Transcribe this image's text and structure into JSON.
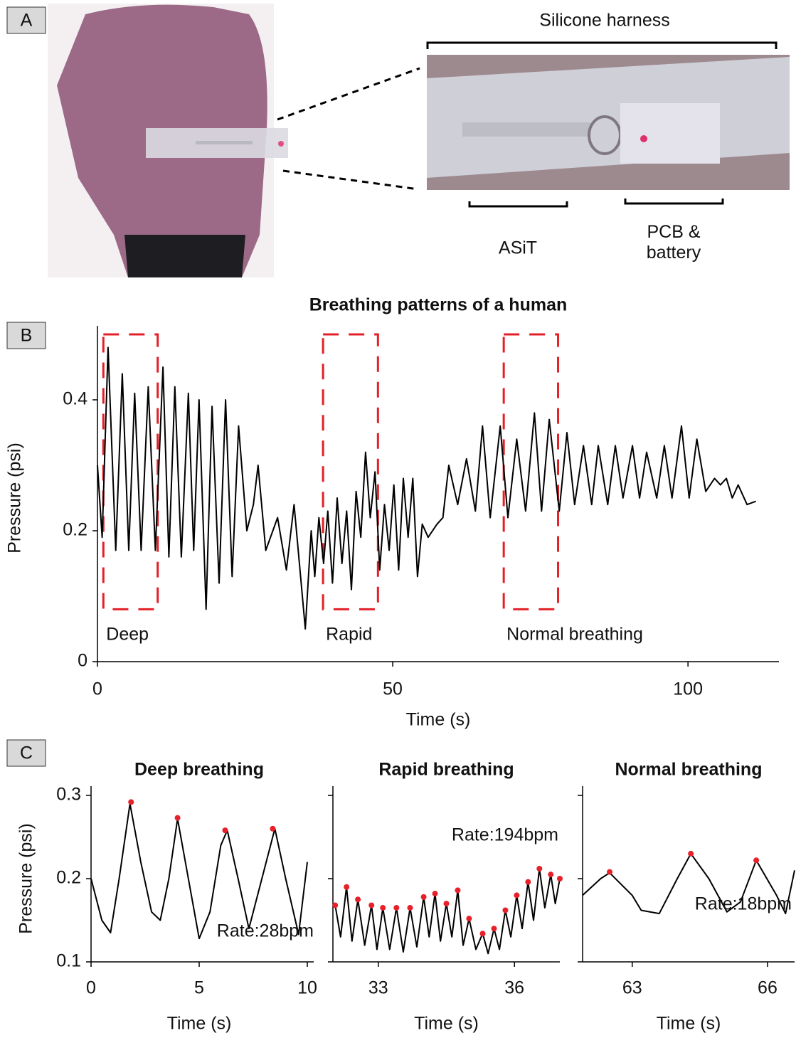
{
  "panel_labels": [
    "A",
    "B",
    "C"
  ],
  "photo_annotations": {
    "harness": "Silicone harness",
    "sensor": "ASiT",
    "pcb": "PCB & battery"
  },
  "chart_data": [
    {
      "type": "line",
      "title": "Breathing patterns of a human",
      "xlabel": "Time (s)",
      "ylabel": "Pressure (psi)",
      "xlim": [
        0,
        115.4
      ],
      "xticks": [
        0,
        50,
        100
      ],
      "ylim": [
        0,
        0.5
      ],
      "yticks": [
        0,
        0.2,
        0.4
      ],
      "color": "#000000",
      "x": [
        0,
        0.8,
        1.8,
        3.1,
        4.2,
        5.3,
        6.3,
        7.4,
        8.6,
        9.8,
        11.1,
        12.1,
        13.1,
        14.2,
        15.4,
        16.3,
        17.2,
        18.4,
        19.4,
        20.6,
        21.7,
        22.8,
        23.9,
        25.3,
        26.4,
        27.2,
        28.5,
        30.5,
        32,
        33.3,
        34.2,
        35.2,
        36.2,
        36.8,
        37.5,
        38.3,
        39,
        39.8,
        40.6,
        41.4,
        42.2,
        43,
        43.8,
        44.6,
        45.4,
        46.2,
        47,
        47.8,
        48.6,
        49.4,
        50.2,
        51,
        51.8,
        52.6,
        53.4,
        54.2,
        55,
        56,
        57.5,
        58.5,
        59.5,
        61,
        62.5,
        64,
        65.2,
        66.5,
        68.2,
        69.5,
        71,
        72.5,
        74,
        75.2,
        76.5,
        78.2,
        79.5,
        80.8,
        82.3,
        83.7,
        84.8,
        86.4,
        87.7,
        89,
        90.6,
        91.8,
        93,
        94.7,
        96,
        97.3,
        98.9,
        100.2,
        101.5,
        103,
        104.5,
        105.5,
        106.5,
        107.5,
        108.5,
        110,
        111.5
      ],
      "values": [
        0.3,
        0.19,
        0.48,
        0.17,
        0.44,
        0.17,
        0.41,
        0.17,
        0.42,
        0.17,
        0.45,
        0.16,
        0.42,
        0.16,
        0.41,
        0.17,
        0.4,
        0.08,
        0.39,
        0.12,
        0.4,
        0.13,
        0.36,
        0.2,
        0.24,
        0.3,
        0.17,
        0.22,
        0.14,
        0.24,
        0.15,
        0.05,
        0.2,
        0.13,
        0.22,
        0.15,
        0.23,
        0.12,
        0.25,
        0.15,
        0.23,
        0.11,
        0.26,
        0.19,
        0.32,
        0.22,
        0.29,
        0.14,
        0.24,
        0.17,
        0.27,
        0.14,
        0.28,
        0.19,
        0.28,
        0.13,
        0.21,
        0.19,
        0.21,
        0.22,
        0.3,
        0.24,
        0.31,
        0.23,
        0.36,
        0.22,
        0.36,
        0.22,
        0.34,
        0.23,
        0.38,
        0.23,
        0.37,
        0.23,
        0.35,
        0.24,
        0.33,
        0.24,
        0.33,
        0.24,
        0.33,
        0.25,
        0.33,
        0.25,
        0.32,
        0.25,
        0.33,
        0.25,
        0.36,
        0.25,
        0.34,
        0.26,
        0.28,
        0.27,
        0.28,
        0.25,
        0.27,
        0.24,
        0.245
      ],
      "box_color": "#e32028",
      "boxes": [
        {
          "label": "Deep",
          "x": [
            1,
            10.2
          ],
          "y": [
            0.08,
            0.5
          ]
        },
        {
          "label": "Rapid",
          "x": [
            38.2,
            47.5
          ],
          "y": [
            0.08,
            0.5
          ]
        },
        {
          "label": "Normal breathing",
          "x": [
            68.8,
            78
          ],
          "y": [
            0.08,
            0.5
          ]
        }
      ]
    },
    {
      "type": "line",
      "title": "Deep breathing",
      "xlabel": "Time (s)",
      "ylabel": "Pressure (psi)",
      "xlim": [
        0,
        10
      ],
      "xticks": [
        0,
        5,
        10
      ],
      "ylim": [
        0.1,
        0.3
      ],
      "yticks": [
        0.1,
        0.2,
        0.3
      ],
      "color": "#000000",
      "x": [
        0,
        0.5,
        0.9,
        1.3,
        1.8,
        2.3,
        2.8,
        3.2,
        3.6,
        4,
        4.5,
        5,
        5.5,
        6,
        6.3,
        6.8,
        7.3,
        7.8,
        8.5,
        9,
        9.6,
        10
      ],
      "values": [
        0.2,
        0.15,
        0.135,
        0.2,
        0.29,
        0.22,
        0.16,
        0.15,
        0.2,
        0.272,
        0.2,
        0.128,
        0.16,
        0.24,
        0.258,
        0.2,
        0.14,
        0.19,
        0.26,
        0.2,
        0.133,
        0.22
      ],
      "peak_color": "#e8202a",
      "peaks": {
        "x": [
          1.85,
          4,
          6.2,
          8.4
        ],
        "values": [
          0.292,
          0.273,
          0.258,
          0.26
        ]
      },
      "annotation": "Rate:28bpm"
    },
    {
      "type": "line",
      "title": "Rapid breathing",
      "xlabel": "Time (s)",
      "xlim": [
        32,
        37
      ],
      "xticks": [
        33,
        36
      ],
      "ylim": [
        0.1,
        0.3
      ],
      "yticks": [
        0.1,
        0.2,
        0.3
      ],
      "ytick_labels": false,
      "color": "#000000",
      "x": [
        32.05,
        32.17,
        32.3,
        32.42,
        32.55,
        32.7,
        32.85,
        32.97,
        33.1,
        33.25,
        33.4,
        33.55,
        33.7,
        33.85,
        34.0,
        34.12,
        34.25,
        34.37,
        34.5,
        34.62,
        34.75,
        34.87,
        35.0,
        35.15,
        35.3,
        35.42,
        35.55,
        35.67,
        35.8,
        35.92,
        36.05,
        36.17,
        36.3,
        36.42,
        36.55,
        36.67,
        36.8,
        36.9,
        37.0
      ],
      "values": [
        0.168,
        0.13,
        0.19,
        0.125,
        0.175,
        0.12,
        0.168,
        0.115,
        0.165,
        0.115,
        0.165,
        0.112,
        0.165,
        0.118,
        0.178,
        0.13,
        0.182,
        0.125,
        0.17,
        0.13,
        0.186,
        0.12,
        0.152,
        0.115,
        0.134,
        0.11,
        0.14,
        0.115,
        0.162,
        0.13,
        0.18,
        0.14,
        0.196,
        0.15,
        0.212,
        0.165,
        0.205,
        0.17,
        0.2
      ],
      "peak_color": "#e8202a",
      "peaks": {
        "x": [
          32.05,
          32.3,
          32.55,
          32.85,
          33.1,
          33.4,
          33.7,
          34.0,
          34.25,
          34.5,
          34.75,
          35.0,
          35.3,
          35.55,
          35.8,
          36.05,
          36.3,
          36.55,
          36.8,
          37.0
        ],
        "values": [
          0.168,
          0.19,
          0.175,
          0.168,
          0.165,
          0.165,
          0.165,
          0.178,
          0.182,
          0.17,
          0.186,
          0.152,
          0.134,
          0.14,
          0.162,
          0.18,
          0.196,
          0.212,
          0.205,
          0.2
        ]
      },
      "annotation": "Rate:194bpm"
    },
    {
      "type": "line",
      "title": "Normal breathing",
      "xlabel": "Time (s)",
      "xlim": [
        61.9,
        66.6
      ],
      "xticks": [
        63,
        66
      ],
      "ylim": [
        0.1,
        0.3
      ],
      "yticks": [
        0.1,
        0.2,
        0.3
      ],
      "ytick_labels": false,
      "color": "#000000",
      "x": [
        61.9,
        62.3,
        62.5,
        63,
        63.2,
        63.6,
        64,
        64.3,
        64.7,
        65.1,
        65.4,
        65.75,
        66.2,
        66.4,
        66.6
      ],
      "values": [
        0.18,
        0.2,
        0.207,
        0.18,
        0.162,
        0.158,
        0.2,
        0.23,
        0.2,
        0.16,
        0.172,
        0.222,
        0.18,
        0.158,
        0.21
      ],
      "peak_color": "#e8202a",
      "peaks": {
        "x": [
          62.5,
          64.3,
          65.75
        ],
        "values": [
          0.208,
          0.23,
          0.222
        ]
      },
      "annotation": "Rate:18bpm"
    }
  ]
}
